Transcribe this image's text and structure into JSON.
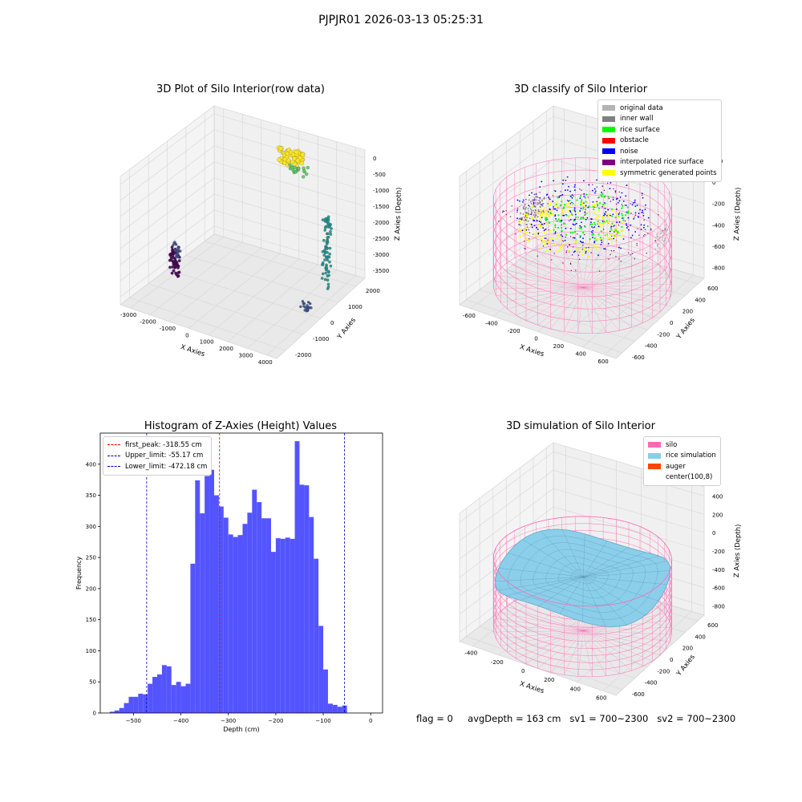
{
  "suptitle": "PJPJR01 2026-03-13 05:25:31",
  "footer": {
    "flag": "flag = 0",
    "avg_depth": "avgDepth = 163 cm",
    "sv1": "sv1 = 700~2300",
    "sv2": "sv2 = 700~2300"
  },
  "chart_data": [
    {
      "type": "scatter",
      "title": "3D Plot of Silo Interior(row data)",
      "xlabel": "X Axies",
      "ylabel": "Y Axies",
      "zlabel": "Z Axies (Depth)",
      "x_ticks": [
        "-3000",
        "-2000",
        "-1000",
        "0",
        "1000",
        "2000",
        "3000",
        "4000"
      ],
      "y_ticks": [
        "-2000",
        "-1000",
        "0",
        "1000",
        "2000"
      ],
      "z_ticks": [
        "0",
        "-500",
        "-1000",
        "-1500",
        "-2000",
        "-2500",
        "-3000",
        "-3500"
      ],
      "colormap": [
        "#440154",
        "#3b528b",
        "#21918c",
        "#5ec962",
        "#fde725"
      ]
    },
    {
      "type": "scatter",
      "title": "3D classify of Silo Interior",
      "xlabel": "X Axies",
      "ylabel": "Y Axies",
      "zlabel": "Z Axies (Depth)",
      "x_ticks": [
        "-600",
        "-400",
        "-200",
        "0",
        "200",
        "400",
        "600"
      ],
      "y_ticks": [
        "-600",
        "-400",
        "-200",
        "0",
        "200",
        "400",
        "600"
      ],
      "z_ticks": [
        "200",
        "0",
        "-200",
        "-400",
        "-600",
        "-800"
      ],
      "legend": [
        {
          "label": "original data",
          "color": "#b3b3b3"
        },
        {
          "label": "inner wall",
          "color": "#808080"
        },
        {
          "label": "rice surface",
          "color": "#00ff00"
        },
        {
          "label": "obstacle",
          "color": "#ff0000"
        },
        {
          "label": "noise",
          "color": "#0000ff"
        },
        {
          "label": "interpolated rice surface",
          "color": "#800080"
        },
        {
          "label": "symmetric generated points",
          "color": "#ffff00"
        }
      ],
      "silo_color": "#ff69b4"
    },
    {
      "type": "bar",
      "title": "Histogram of Z-Axies (Height) Values",
      "xlabel": "Depth (cm)",
      "ylabel": "Frequency",
      "xlim": [
        -570,
        25
      ],
      "ylim": [
        0,
        450
      ],
      "x_ticks": [
        -500,
        -400,
        -300,
        -200,
        -100,
        0
      ],
      "y_ticks": [
        0,
        50,
        100,
        150,
        200,
        250,
        300,
        350,
        400
      ],
      "bar_color": "#4b4bff",
      "bin_start": -550,
      "bin_width": 10,
      "values": [
        2,
        4,
        8,
        16,
        26,
        26,
        31,
        30,
        47,
        58,
        62,
        77,
        75,
        45,
        50,
        43,
        47,
        240,
        374,
        321,
        381,
        391,
        350,
        332,
        314,
        287,
        283,
        286,
        304,
        322,
        359,
        339,
        313,
        313,
        259,
        281,
        280,
        282,
        280,
        437,
        367,
        366,
        315,
        248,
        140,
        70,
        15,
        13,
        10,
        12
      ],
      "lines": [
        {
          "label": "first_peak: -318.55 cm",
          "value": -318.55,
          "color": "#ff0000"
        },
        {
          "label": "Upper_limit: -55.17 cm",
          "value": -55.17,
          "color": "#0000cc"
        },
        {
          "label": "Lower_limit: -472.18 cm",
          "value": -472.18,
          "color": "#0000cc"
        }
      ]
    },
    {
      "type": "scatter",
      "title": "3D simulation of Silo Interior",
      "xlabel": "X Axies",
      "ylabel": "Y Axies",
      "zlabel": "Z Axies (Depth)",
      "x_ticks": [
        "-400",
        "-200",
        "0",
        "200",
        "400",
        "600"
      ],
      "y_ticks": [
        "-600",
        "-400",
        "-200",
        "0",
        "200",
        "400",
        "600"
      ],
      "z_ticks": [
        "400",
        "200",
        "0",
        "-200",
        "-400",
        "-600",
        "-800"
      ],
      "legend": [
        {
          "label": "silo",
          "color": "#ff69b4"
        },
        {
          "label": "rice simulation",
          "color": "#87ceeb"
        },
        {
          "label": "auger",
          "color": "#ff4500"
        },
        {
          "label": "center(100,8)",
          "color": "#ffffff"
        }
      ]
    }
  ]
}
